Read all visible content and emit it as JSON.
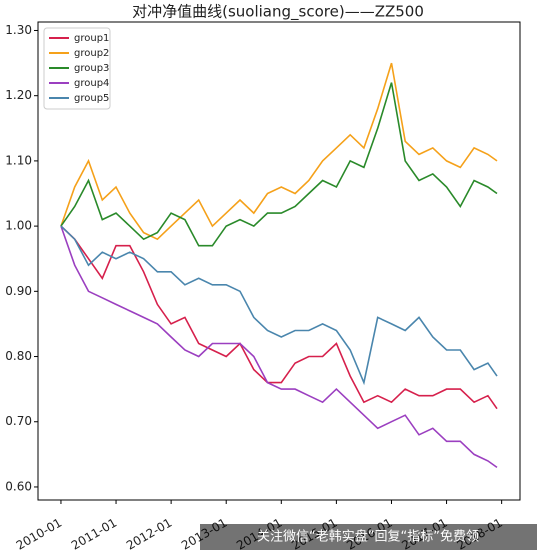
{
  "chart_data": {
    "type": "line",
    "title": "对冲净值曲线(suoliang_score)——ZZ500",
    "watermark": "关注微信“老韩实盘”回复“指标”免费领",
    "x": [
      "2010-01",
      "2010-04",
      "2010-07",
      "2010-10",
      "2011-01",
      "2011-04",
      "2011-07",
      "2011-10",
      "2012-01",
      "2012-04",
      "2012-07",
      "2012-10",
      "2013-01",
      "2013-04",
      "2013-07",
      "2013-10",
      "2014-01",
      "2014-04",
      "2014-07",
      "2014-10",
      "2015-01",
      "2015-04",
      "2015-07",
      "2015-10",
      "2016-01",
      "2016-04",
      "2016-07",
      "2016-10",
      "2017-01",
      "2017-04",
      "2017-07",
      "2017-10",
      "2017-12"
    ],
    "series": [
      {
        "name": "group1",
        "color": "#d6204c",
        "values": [
          1.0,
          0.98,
          0.95,
          0.92,
          0.97,
          0.97,
          0.93,
          0.88,
          0.85,
          0.86,
          0.82,
          0.81,
          0.8,
          0.82,
          0.78,
          0.76,
          0.76,
          0.79,
          0.8,
          0.8,
          0.82,
          0.77,
          0.73,
          0.74,
          0.73,
          0.75,
          0.74,
          0.74,
          0.75,
          0.75,
          0.73,
          0.74,
          0.72
        ]
      },
      {
        "name": "group2",
        "color": "#f5a11a",
        "values": [
          1.0,
          1.06,
          1.1,
          1.04,
          1.06,
          1.02,
          0.99,
          0.98,
          1.0,
          1.02,
          1.04,
          1.0,
          1.02,
          1.04,
          1.02,
          1.05,
          1.06,
          1.05,
          1.07,
          1.1,
          1.12,
          1.14,
          1.12,
          1.18,
          1.25,
          1.13,
          1.11,
          1.12,
          1.1,
          1.09,
          1.12,
          1.11,
          1.1
        ]
      },
      {
        "name": "group3",
        "color": "#2a8a2a",
        "values": [
          1.0,
          1.03,
          1.07,
          1.01,
          1.02,
          1.0,
          0.98,
          0.99,
          1.02,
          1.01,
          0.97,
          0.97,
          1.0,
          1.01,
          1.0,
          1.02,
          1.02,
          1.03,
          1.05,
          1.07,
          1.06,
          1.1,
          1.09,
          1.15,
          1.22,
          1.1,
          1.07,
          1.08,
          1.06,
          1.03,
          1.07,
          1.06,
          1.05
        ]
      },
      {
        "name": "group4",
        "color": "#9b3fc0",
        "values": [
          1.0,
          0.94,
          0.9,
          0.89,
          0.88,
          0.87,
          0.86,
          0.85,
          0.83,
          0.81,
          0.8,
          0.82,
          0.82,
          0.82,
          0.8,
          0.76,
          0.75,
          0.75,
          0.74,
          0.73,
          0.75,
          0.73,
          0.71,
          0.69,
          0.7,
          0.71,
          0.68,
          0.69,
          0.67,
          0.67,
          0.65,
          0.64,
          0.63
        ]
      },
      {
        "name": "group5",
        "color": "#4a86ad",
        "values": [
          1.0,
          0.98,
          0.94,
          0.96,
          0.95,
          0.96,
          0.95,
          0.93,
          0.93,
          0.91,
          0.92,
          0.91,
          0.91,
          0.9,
          0.86,
          0.84,
          0.83,
          0.84,
          0.84,
          0.85,
          0.84,
          0.81,
          0.76,
          0.86,
          0.85,
          0.84,
          0.86,
          0.83,
          0.81,
          0.81,
          0.78,
          0.79,
          0.77
        ]
      }
    ],
    "xlim": [
      "2009-08",
      "2018-05"
    ],
    "xticks": [
      "2010-01",
      "2011-01",
      "2012-01",
      "2013-01",
      "2014-01",
      "2015-01",
      "2016-01",
      "2017-01",
      "2018-01"
    ],
    "ylim": [
      0.58,
      1.313
    ],
    "yticks": [
      {
        "value": 0.6,
        "label": "0.60"
      },
      {
        "value": 0.7,
        "label": "0.70"
      },
      {
        "value": 0.8,
        "label": "0.80"
      },
      {
        "value": 0.9,
        "label": "0.90"
      },
      {
        "value": 1.0,
        "label": "1.00"
      },
      {
        "value": 1.1,
        "label": "1.10"
      },
      {
        "value": 1.2,
        "label": "1.20"
      },
      {
        "value": 1.3,
        "label": "1.30"
      }
    ],
    "legend": "upper left",
    "grid": false
  }
}
